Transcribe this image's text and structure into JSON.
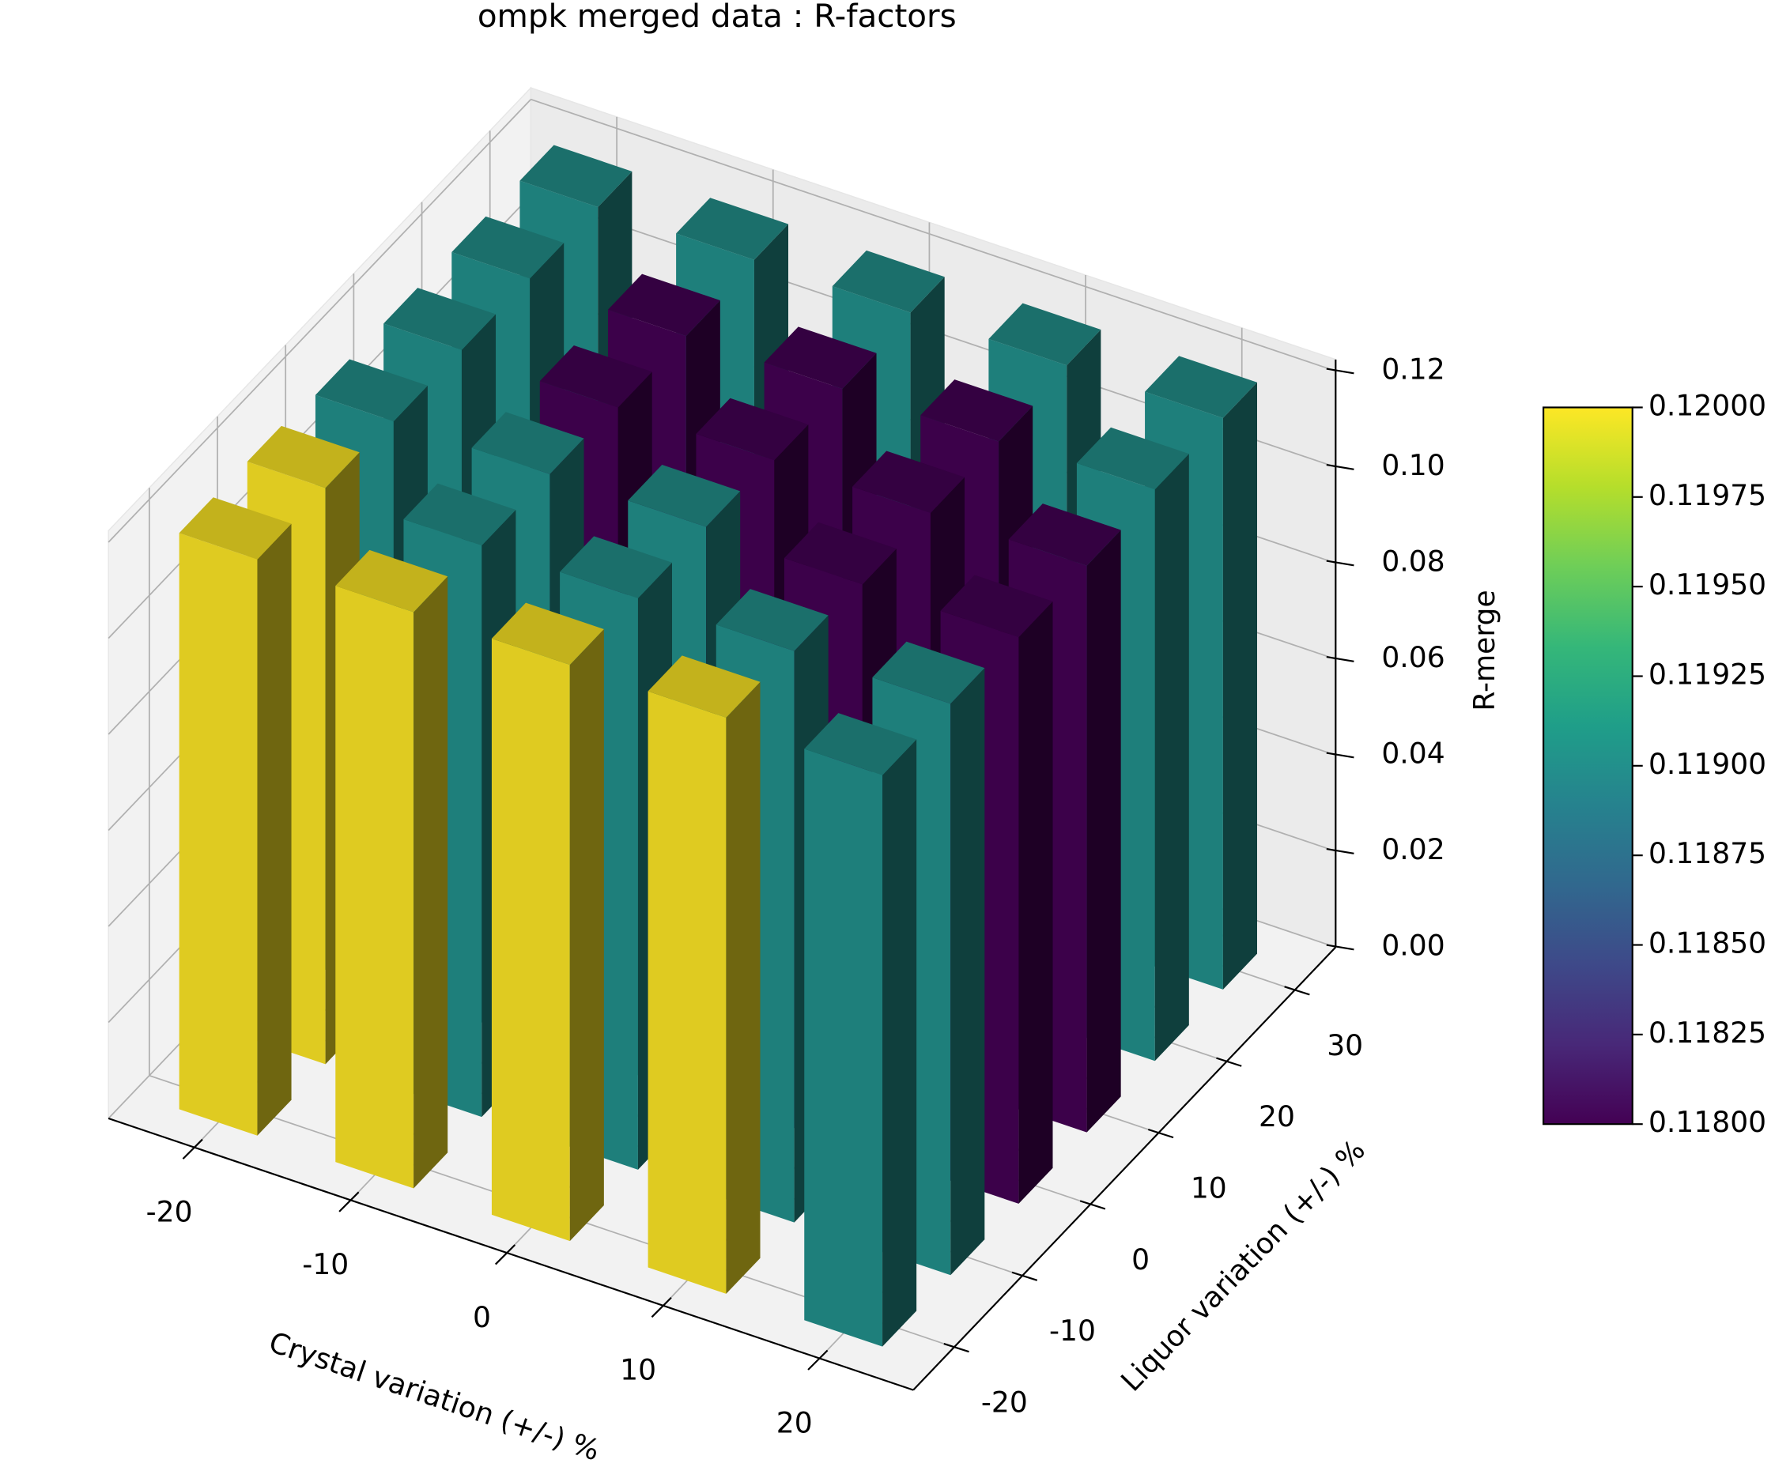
{
  "chart_data": {
    "type": "bar3d",
    "title": "ompk merged data : R-factors",
    "xlabel": "Crystal variation (+/-) %",
    "ylabel": "Liquor variation (+/-) %",
    "zlabel": "R-merge",
    "x": [
      -20,
      -10,
      0,
      10,
      20
    ],
    "y": [
      -20,
      -10,
      0,
      10,
      20,
      30
    ],
    "values": [
      [
        0.12,
        0.12,
        0.119,
        0.119,
        0.119,
        0.119
      ],
      [
        0.12,
        0.119,
        0.119,
        0.118,
        0.118,
        0.119
      ],
      [
        0.12,
        0.119,
        0.119,
        0.118,
        0.118,
        0.119
      ],
      [
        0.12,
        0.119,
        0.118,
        0.118,
        0.118,
        0.119
      ],
      [
        0.119,
        0.119,
        0.118,
        0.118,
        0.119,
        0.119
      ]
    ],
    "xlim": [
      -25.5,
      26
    ],
    "ylim": [
      -26,
      36
    ],
    "zlim": [
      0,
      0.1224
    ],
    "xticks": [
      -20,
      -10,
      0,
      10,
      20
    ],
    "yticks": [
      -20,
      -10,
      0,
      10,
      20,
      30
    ],
    "zticks": [
      {
        "value": 0,
        "label": "0.00"
      },
      {
        "value": 0.02,
        "label": "0.02"
      },
      {
        "value": 0.04,
        "label": "0.04"
      },
      {
        "value": 0.06,
        "label": "0.06"
      },
      {
        "value": 0.08,
        "label": "0.08"
      },
      {
        "value": 0.1,
        "label": "0.10"
      },
      {
        "value": 0.12,
        "label": "0.12"
      }
    ],
    "grid": true,
    "colormap": [
      "#440154",
      "#482878",
      "#3e4989",
      "#31688e",
      "#26828e",
      "#1f9e89",
      "#35b779",
      "#6ece58",
      "#b5de2b",
      "#fde725"
    ],
    "clim": [
      0.118,
      0.12
    ],
    "cticks": [
      {
        "value": 0.118,
        "label": "0.11800"
      },
      {
        "value": 0.11825,
        "label": "0.11825"
      },
      {
        "value": 0.1185,
        "label": "0.11850"
      },
      {
        "value": 0.11875,
        "label": "0.11875"
      },
      {
        "value": 0.119,
        "label": "0.11900"
      },
      {
        "value": 0.11925,
        "label": "0.11925"
      },
      {
        "value": 0.1195,
        "label": "0.11950"
      },
      {
        "value": 0.11975,
        "label": "0.11975"
      },
      {
        "value": 0.12,
        "label": "0.12000"
      }
    ]
  }
}
